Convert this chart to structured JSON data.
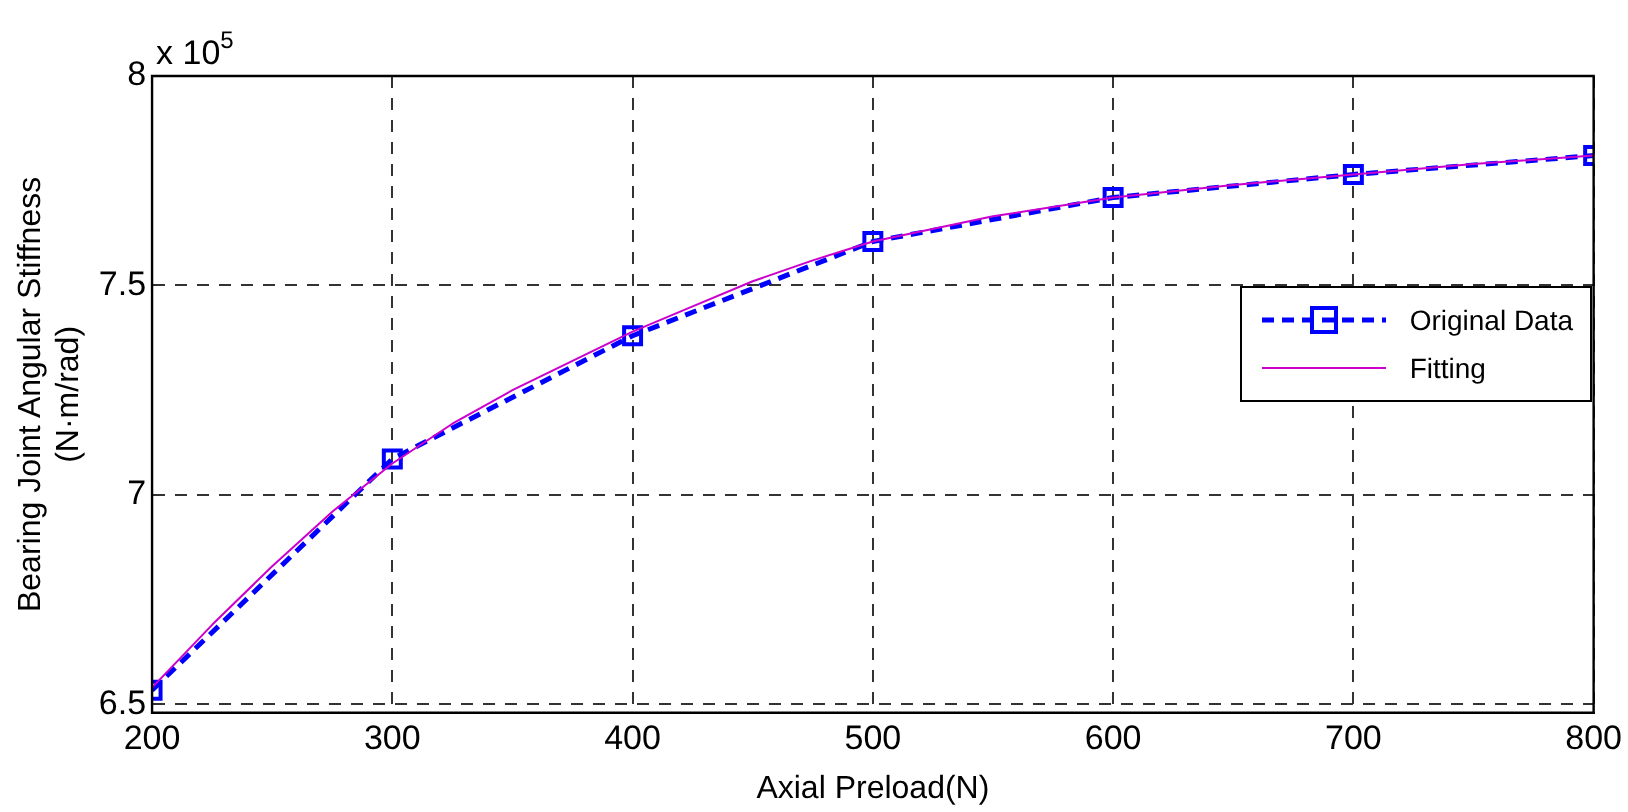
{
  "chart_data": {
    "type": "line",
    "xlabel": "Axial Preload(N)",
    "ylabel": "Bearing Joint Angular Stiffness\n(N·m/rad)",
    "annotations": [
      "x 10$^{5}$"
    ],
    "xlim": [
      200,
      800
    ],
    "xticks": [
      200,
      300,
      400,
      500,
      600,
      700,
      800
    ],
    "ylim": [
      6.48,
      8
    ],
    "yticks": [
      6.5,
      7,
      7.5,
      8
    ],
    "grid": true,
    "legend": "right",
    "series": [
      {
        "name": "Original Data",
        "color": "#0000ff",
        "marker": "square",
        "line_style": "dashed",
        "x": [
          200,
          300,
          400,
          500,
          600,
          700,
          800
        ],
        "values": [
          6.534,
          7.086,
          7.38,
          7.605,
          7.71,
          7.765,
          7.81
        ]
      },
      {
        "name": "Fitting",
        "color": "#cc00cc",
        "marker": "none",
        "line_style": "solid",
        "x": [
          200,
          225,
          250,
          275,
          300,
          325,
          350,
          375,
          400,
          425,
          450,
          475,
          500,
          550,
          600,
          650,
          700,
          750,
          800
        ],
        "values": [
          6.54,
          6.69,
          6.83,
          6.96,
          7.075,
          7.17,
          7.25,
          7.32,
          7.39,
          7.45,
          7.51,
          7.56,
          7.605,
          7.665,
          7.71,
          7.74,
          7.765,
          7.79,
          7.81
        ]
      }
    ]
  }
}
